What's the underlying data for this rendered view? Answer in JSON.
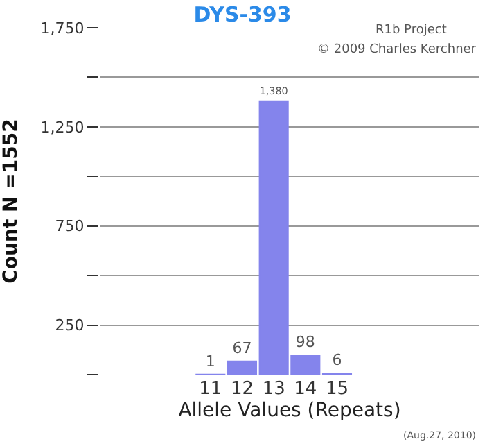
{
  "chart_data": {
    "type": "bar",
    "title": "DYS-393",
    "xlabel": "Allele Values (Repeats)",
    "ylabel": "Count N =1552",
    "categories": [
      null,
      null,
      null,
      "11",
      "12",
      "13",
      "14",
      "15",
      null,
      null,
      null,
      null
    ],
    "values": [
      null,
      null,
      null,
      1,
      67,
      1380,
      98,
      6,
      null,
      null,
      null,
      null
    ],
    "color": "#8484ec",
    "value_labels": [
      null,
      null,
      null,
      "1",
      "67",
      "1,380",
      "98",
      "6",
      null,
      null,
      null,
      null
    ],
    "grid": "y",
    "ylim": [
      0,
      1750
    ],
    "yticks": [
      {
        "value": 0,
        "label": null
      },
      250,
      {
        "value": 500,
        "label": null
      },
      750,
      {
        "value": 1000,
        "label": null
      },
      {
        "value": 1250,
        "label": "1,250"
      },
      {
        "value": 1500,
        "label": null
      },
      {
        "value": 1750,
        "label": "1,750"
      }
    ],
    "annotations": [
      "R1b Project",
      "© 2009 Charles Kerchner",
      "(Aug.27, 2010)"
    ]
  }
}
